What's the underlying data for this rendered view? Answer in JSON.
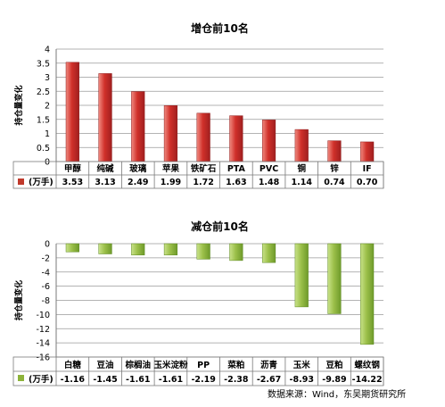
{
  "chart_data": [
    {
      "type": "bar",
      "title": "增仓前10名",
      "ylabel": "持仓量变化",
      "ylim": [
        0,
        4
      ],
      "yticks": [
        "4",
        "3.5",
        "3",
        "2.5",
        "2",
        "1.5",
        "1",
        "0.5",
        "0"
      ],
      "grid": true,
      "color": "#C0392B",
      "categories": [
        "甲醇",
        "纯碱",
        "玻璃",
        "苹果",
        "铁矿石",
        "PTA",
        "PVC",
        "铜",
        "锌",
        "IF"
      ],
      "series": [
        {
          "name": "(万手)",
          "values": [
            3.53,
            3.13,
            2.49,
            1.99,
            1.72,
            1.63,
            1.48,
            1.14,
            0.74,
            0.7
          ],
          "labels": [
            "3.53",
            "3.13",
            "2.49",
            "1.99",
            "1.72",
            "1.63",
            "1.48",
            "1.14",
            "0.74",
            "0.70"
          ]
        }
      ]
    },
    {
      "type": "bar",
      "title": "减仓前10名",
      "ylabel": "持仓量变化",
      "ylim": [
        -16,
        0
      ],
      "yticks": [
        "0",
        "-2",
        "-4",
        "-6",
        "-8",
        "-10",
        "-12",
        "-14",
        "-16"
      ],
      "grid": true,
      "color": "#8DB33A",
      "categories": [
        "白糖",
        "豆油",
        "棕榈油",
        "玉米淀粉",
        "PP",
        "菜粕",
        "沥青",
        "玉米",
        "豆粕",
        "螺纹钢"
      ],
      "series": [
        {
          "name": "(万手)",
          "values": [
            -1.16,
            -1.45,
            -1.61,
            -1.61,
            -2.19,
            -2.38,
            -2.67,
            -8.93,
            -9.89,
            -14.22
          ],
          "labels": [
            "-1.16",
            "-1.45",
            "-1.61",
            "-1.61",
            "-2.19",
            "-2.38",
            "-2.67",
            "-8.93",
            "-9.89",
            "-14.22"
          ]
        }
      ]
    }
  ],
  "source_note": "数据来源：Wind，东吴期货研究所"
}
